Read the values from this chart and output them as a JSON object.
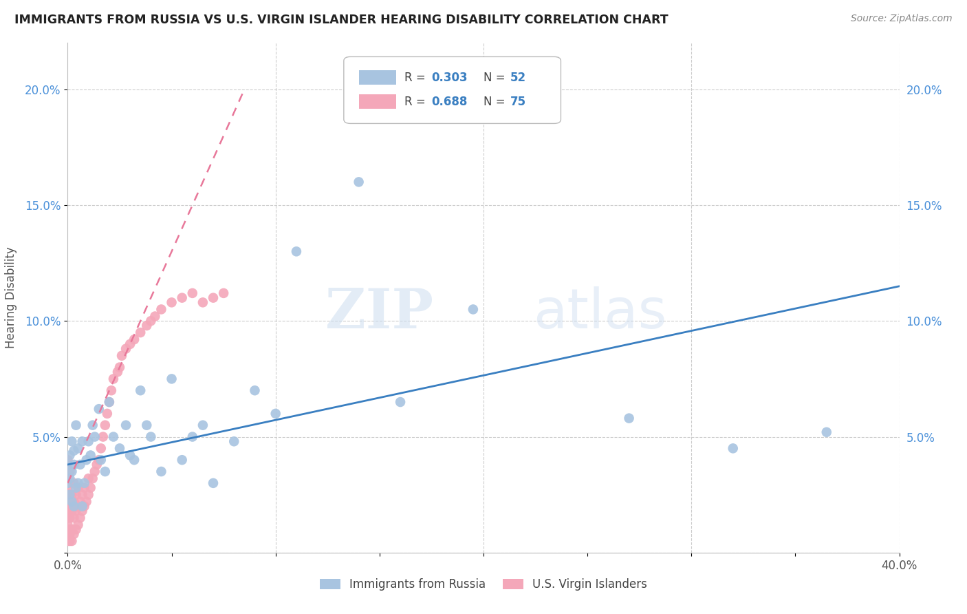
{
  "title": "IMMIGRANTS FROM RUSSIA VS U.S. VIRGIN ISLANDER HEARING DISABILITY CORRELATION CHART",
  "source": "Source: ZipAtlas.com",
  "ylabel": "Hearing Disability",
  "xlim": [
    0.0,
    0.4
  ],
  "ylim": [
    0.0,
    0.22
  ],
  "R_blue": 0.303,
  "N_blue": 52,
  "R_pink": 0.688,
  "N_pink": 75,
  "legend_label_blue": "Immigrants from Russia",
  "legend_label_pink": "U.S. Virgin Islanders",
  "color_blue": "#a8c4e0",
  "color_pink": "#f4a7b9",
  "line_color_blue": "#3a7fc1",
  "line_color_pink": "#e8789a",
  "watermark_zip": "ZIP",
  "watermark_atlas": "atlas",
  "blue_x": [
    0.0,
    0.0,
    0.001,
    0.001,
    0.001,
    0.002,
    0.002,
    0.002,
    0.003,
    0.003,
    0.003,
    0.004,
    0.004,
    0.005,
    0.005,
    0.006,
    0.007,
    0.007,
    0.008,
    0.009,
    0.01,
    0.011,
    0.012,
    0.013,
    0.015,
    0.016,
    0.018,
    0.02,
    0.022,
    0.025,
    0.028,
    0.03,
    0.032,
    0.035,
    0.038,
    0.04,
    0.045,
    0.05,
    0.055,
    0.06,
    0.065,
    0.07,
    0.08,
    0.09,
    0.1,
    0.11,
    0.14,
    0.16,
    0.195,
    0.27,
    0.32,
    0.365
  ],
  "blue_y": [
    0.03,
    0.038,
    0.025,
    0.042,
    0.032,
    0.022,
    0.035,
    0.048,
    0.02,
    0.038,
    0.044,
    0.028,
    0.055,
    0.03,
    0.045,
    0.038,
    0.02,
    0.048,
    0.03,
    0.04,
    0.048,
    0.042,
    0.055,
    0.05,
    0.062,
    0.04,
    0.035,
    0.065,
    0.05,
    0.045,
    0.055,
    0.042,
    0.04,
    0.07,
    0.055,
    0.05,
    0.035,
    0.075,
    0.04,
    0.05,
    0.055,
    0.03,
    0.048,
    0.07,
    0.06,
    0.13,
    0.16,
    0.065,
    0.105,
    0.058,
    0.045,
    0.052
  ],
  "pink_x": [
    0.0,
    0.0,
    0.0,
    0.0,
    0.0,
    0.0,
    0.0,
    0.0,
    0.0,
    0.0,
    0.0,
    0.0,
    0.0,
    0.0,
    0.0,
    0.001,
    0.001,
    0.001,
    0.001,
    0.001,
    0.001,
    0.001,
    0.001,
    0.002,
    0.002,
    0.002,
    0.002,
    0.003,
    0.003,
    0.003,
    0.003,
    0.004,
    0.004,
    0.004,
    0.005,
    0.005,
    0.005,
    0.006,
    0.006,
    0.007,
    0.007,
    0.008,
    0.008,
    0.009,
    0.01,
    0.01,
    0.011,
    0.012,
    0.013,
    0.014,
    0.015,
    0.016,
    0.017,
    0.018,
    0.019,
    0.02,
    0.021,
    0.022,
    0.024,
    0.025,
    0.026,
    0.028,
    0.03,
    0.032,
    0.035,
    0.038,
    0.04,
    0.042,
    0.045,
    0.05,
    0.055,
    0.06,
    0.065,
    0.07,
    0.075
  ],
  "pink_y": [
    0.005,
    0.008,
    0.01,
    0.012,
    0.015,
    0.018,
    0.02,
    0.022,
    0.025,
    0.028,
    0.03,
    0.032,
    0.035,
    0.038,
    0.04,
    0.005,
    0.008,
    0.01,
    0.015,
    0.02,
    0.025,
    0.03,
    0.035,
    0.005,
    0.01,
    0.018,
    0.025,
    0.008,
    0.015,
    0.022,
    0.03,
    0.01,
    0.018,
    0.025,
    0.012,
    0.02,
    0.028,
    0.015,
    0.022,
    0.018,
    0.025,
    0.02,
    0.028,
    0.022,
    0.025,
    0.032,
    0.028,
    0.032,
    0.035,
    0.038,
    0.04,
    0.045,
    0.05,
    0.055,
    0.06,
    0.065,
    0.07,
    0.075,
    0.078,
    0.08,
    0.085,
    0.088,
    0.09,
    0.092,
    0.095,
    0.098,
    0.1,
    0.102,
    0.105,
    0.108,
    0.11,
    0.112,
    0.108,
    0.11,
    0.112
  ],
  "blue_line_x": [
    0.0,
    0.4
  ],
  "blue_line_y": [
    0.038,
    0.115
  ],
  "pink_line_x": [
    0.0,
    0.085
  ],
  "pink_line_y": [
    0.03,
    0.2
  ]
}
